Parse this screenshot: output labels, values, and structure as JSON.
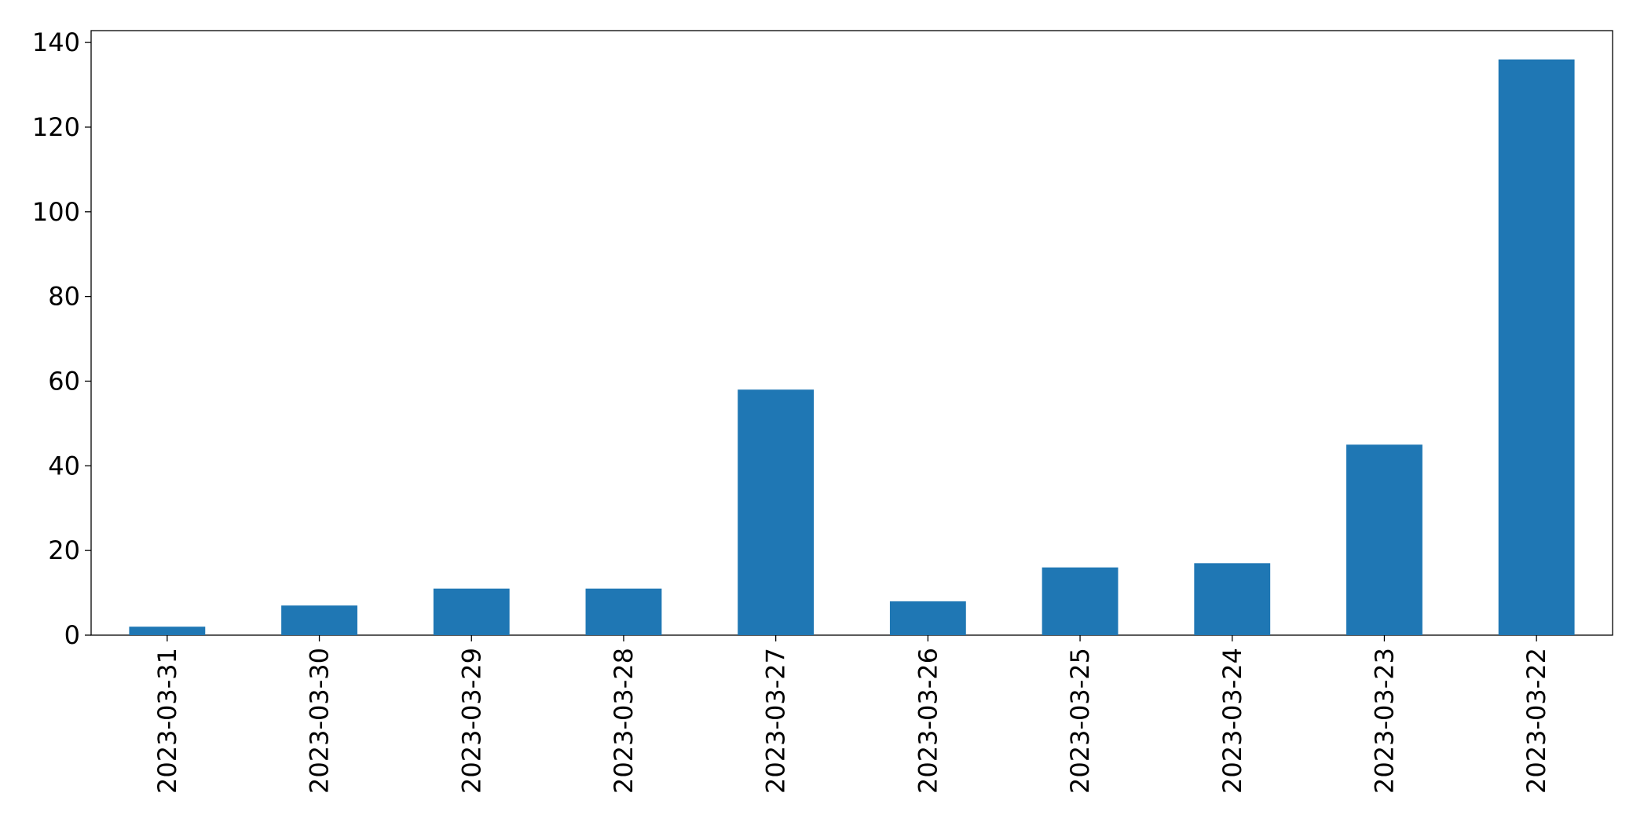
{
  "chart_data": {
    "type": "bar",
    "categories": [
      "2023-03-31",
      "2023-03-30",
      "2023-03-29",
      "2023-03-28",
      "2023-03-27",
      "2023-03-26",
      "2023-03-25",
      "2023-03-24",
      "2023-03-23",
      "2023-03-22"
    ],
    "values": [
      2,
      7,
      11,
      11,
      58,
      8,
      16,
      17,
      45,
      136
    ],
    "color": "#1f77b4",
    "ylim": [
      0,
      142.8
    ],
    "yticks": [
      0,
      20,
      40,
      60,
      80,
      100,
      120,
      140
    ],
    "grid": false
  }
}
